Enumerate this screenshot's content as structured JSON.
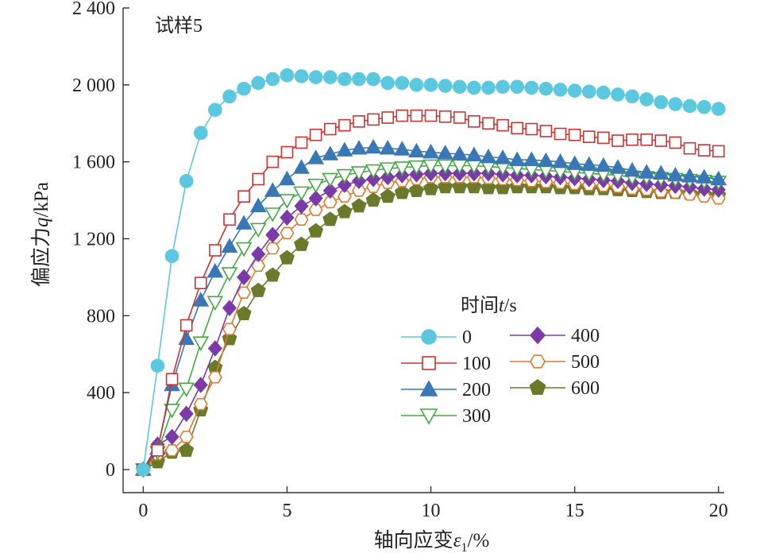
{
  "chart_data": {
    "type": "line",
    "panel_label": "试样5",
    "xlabel": {
      "prefix": "轴向应变",
      "symbol": "ε",
      "subscript": "1",
      "suffix": "/%"
    },
    "ylabel": {
      "prefix": "偏应力",
      "symbol": "q",
      "suffix": "/kPa"
    },
    "xlim": [
      -0.7,
      20.2
    ],
    "ylim": [
      -120,
      2400
    ],
    "xticks": [
      0,
      5,
      10,
      15,
      20
    ],
    "yticks": [
      0,
      400,
      800,
      1200,
      1600,
      2000,
      2400
    ],
    "ytick_labels": [
      "0",
      "400",
      "800",
      "1 200",
      "1 600",
      "2 000",
      "2 400"
    ],
    "legend": {
      "title_prefix": "时间",
      "title_symbol": "t",
      "title_suffix": "/s"
    },
    "series": [
      {
        "name": "0",
        "color": "#5bc8e0",
        "marker": "circle-filled",
        "x": [
          0,
          0.5,
          1,
          1.5,
          2,
          2.5,
          3,
          3.5,
          4,
          4.5,
          5,
          5.5,
          6,
          6.5,
          7,
          7.5,
          8,
          8.5,
          9,
          9.5,
          10,
          10.5,
          11,
          11.5,
          12,
          12.5,
          13,
          13.5,
          14,
          14.5,
          15,
          15.5,
          16,
          16.5,
          17,
          17.5,
          18,
          18.5,
          19,
          19.5,
          20
        ],
        "y": [
          0,
          540,
          1110,
          1500,
          1750,
          1870,
          1940,
          1980,
          2010,
          2030,
          2050,
          2045,
          2040,
          2040,
          2030,
          2030,
          2030,
          2010,
          2010,
          2000,
          2000,
          1995,
          1990,
          1985,
          1985,
          1990,
          1990,
          1985,
          1980,
          1975,
          1970,
          1965,
          1960,
          1950,
          1940,
          1925,
          1910,
          1900,
          1890,
          1885,
          1875
        ]
      },
      {
        "name": "100",
        "color": "#cc3333",
        "marker": "square-open",
        "x": [
          0,
          0.5,
          1,
          1.5,
          2,
          2.5,
          3,
          3.5,
          4,
          4.5,
          5,
          5.5,
          6,
          6.5,
          7,
          7.5,
          8,
          8.5,
          9,
          9.5,
          10,
          10.5,
          11,
          11.5,
          12,
          12.5,
          13,
          13.5,
          14,
          14.5,
          15,
          15.5,
          16,
          16.5,
          17,
          17.5,
          18,
          18.5,
          19,
          19.5,
          20
        ],
        "y": [
          0,
          100,
          470,
          750,
          970,
          1140,
          1300,
          1420,
          1510,
          1600,
          1650,
          1700,
          1740,
          1770,
          1790,
          1810,
          1820,
          1830,
          1840,
          1840,
          1840,
          1835,
          1830,
          1810,
          1800,
          1790,
          1775,
          1770,
          1760,
          1745,
          1740,
          1730,
          1725,
          1710,
          1715,
          1715,
          1710,
          1700,
          1670,
          1660,
          1655
        ]
      },
      {
        "name": "200",
        "color": "#3a78b5",
        "marker": "triangle-up-filled",
        "x": [
          0,
          0.5,
          1,
          1.5,
          2,
          2.5,
          3,
          3.5,
          4,
          4.5,
          5,
          5.5,
          6,
          6.5,
          7,
          7.5,
          8,
          8.5,
          9,
          9.5,
          10,
          10.5,
          11,
          11.5,
          12,
          12.5,
          13,
          13.5,
          14,
          14.5,
          15,
          15.5,
          16,
          16.5,
          17,
          17.5,
          18,
          18.5,
          19,
          19.5,
          20
        ],
        "y": [
          0,
          110,
          440,
          680,
          880,
          1030,
          1160,
          1280,
          1370,
          1450,
          1510,
          1570,
          1620,
          1640,
          1660,
          1670,
          1675,
          1670,
          1665,
          1655,
          1650,
          1645,
          1640,
          1635,
          1625,
          1620,
          1610,
          1610,
          1605,
          1600,
          1590,
          1585,
          1580,
          1570,
          1555,
          1545,
          1540,
          1530,
          1525,
          1520,
          1510
        ]
      },
      {
        "name": "300",
        "color": "#44aa44",
        "marker": "triangle-down-open",
        "x": [
          0,
          0.5,
          1,
          1.5,
          2,
          2.5,
          3,
          3.5,
          4,
          4.5,
          5,
          5.5,
          6,
          6.5,
          7,
          7.5,
          8,
          8.5,
          9,
          9.5,
          10,
          10.5,
          11,
          11.5,
          12,
          12.5,
          13,
          13.5,
          14,
          14.5,
          15,
          15.5,
          16,
          16.5,
          17,
          17.5,
          18,
          18.5,
          19,
          19.5,
          20
        ],
        "y": [
          0,
          90,
          310,
          420,
          660,
          870,
          1020,
          1150,
          1250,
          1330,
          1400,
          1440,
          1480,
          1510,
          1530,
          1545,
          1555,
          1565,
          1570,
          1575,
          1580,
          1580,
          1580,
          1580,
          1575,
          1570,
          1565,
          1560,
          1555,
          1550,
          1545,
          1540,
          1535,
          1530,
          1520,
          1520,
          1515,
          1510,
          1505,
          1500,
          1495
        ]
      },
      {
        "name": "400",
        "color": "#7a3aa8",
        "marker": "diamond-filled",
        "x": [
          0,
          0.5,
          1,
          1.5,
          2,
          2.5,
          3,
          3.5,
          4,
          4.5,
          5,
          5.5,
          6,
          6.5,
          7,
          7.5,
          8,
          8.5,
          9,
          9.5,
          10,
          10.5,
          11,
          11.5,
          12,
          12.5,
          13,
          13.5,
          14,
          14.5,
          15,
          15.5,
          16,
          16.5,
          17,
          17.5,
          18,
          18.5,
          19,
          19.5,
          20
        ],
        "y": [
          0,
          130,
          170,
          290,
          440,
          630,
          840,
          1000,
          1120,
          1220,
          1310,
          1370,
          1410,
          1450,
          1480,
          1500,
          1510,
          1520,
          1530,
          1535,
          1540,
          1540,
          1540,
          1540,
          1540,
          1535,
          1530,
          1530,
          1525,
          1520,
          1515,
          1510,
          1505,
          1500,
          1490,
          1485,
          1480,
          1475,
          1470,
          1460,
          1455
        ]
      },
      {
        "name": "500",
        "color": "#e07a30",
        "marker": "hexagon-open",
        "x": [
          0,
          0.5,
          1,
          1.5,
          2,
          2.5,
          3,
          3.5,
          4,
          4.5,
          5,
          5.5,
          6,
          6.5,
          7,
          7.5,
          8,
          8.5,
          9,
          9.5,
          10,
          10.5,
          11,
          11.5,
          12,
          12.5,
          13,
          13.5,
          14,
          14.5,
          15,
          15.5,
          16,
          16.5,
          17,
          17.5,
          18,
          18.5,
          19,
          19.5,
          20
        ],
        "y": [
          0,
          80,
          100,
          170,
          340,
          480,
          730,
          920,
          1060,
          1150,
          1230,
          1300,
          1350,
          1390,
          1420,
          1450,
          1470,
          1490,
          1500,
          1510,
          1520,
          1520,
          1520,
          1520,
          1515,
          1510,
          1505,
          1500,
          1495,
          1490,
          1485,
          1480,
          1475,
          1470,
          1460,
          1455,
          1445,
          1440,
          1430,
          1420,
          1410
        ]
      },
      {
        "name": "600",
        "color": "#6b7a2a",
        "marker": "pentagon-filled",
        "x": [
          0,
          0.5,
          1,
          1.5,
          2,
          2.5,
          3,
          3.5,
          4,
          4.5,
          5,
          5.5,
          6,
          6.5,
          7,
          7.5,
          8,
          8.5,
          9,
          9.5,
          10,
          10.5,
          11,
          11.5,
          12,
          12.5,
          13,
          13.5,
          14,
          14.5,
          15,
          15.5,
          16,
          16.5,
          17,
          17.5,
          18,
          18.5,
          19,
          19.5,
          20
        ],
        "y": [
          0,
          40,
          90,
          100,
          310,
          530,
          680,
          810,
          930,
          1010,
          1100,
          1170,
          1240,
          1300,
          1340,
          1370,
          1400,
          1420,
          1440,
          1450,
          1460,
          1470,
          1470,
          1470,
          1465,
          1465,
          1470,
          1470,
          1470,
          1465,
          1465,
          1460,
          1460,
          1455,
          1450,
          1445,
          1440,
          1440,
          1435,
          1430,
          1425
        ]
      }
    ]
  }
}
